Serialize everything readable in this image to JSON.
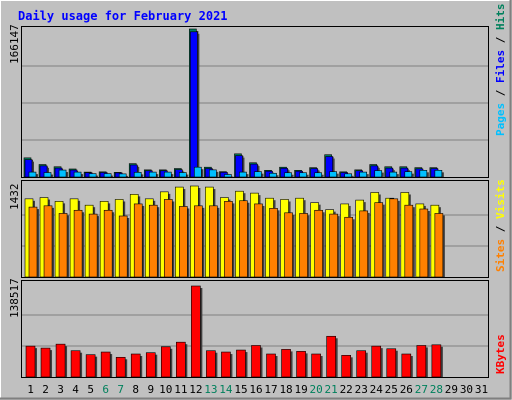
{
  "title": "Daily usage for February 2021",
  "legend": {
    "top_pages": "Pages",
    "top_files": "Files",
    "top_hits": "Hits",
    "mid_sites": "Sites",
    "mid_visits": "Visits",
    "bottom_kbytes": "KBytes",
    "separator": " / "
  },
  "colors": {
    "background": "#c0c0c0",
    "grid": "#808080",
    "title": "#0000ff",
    "hits": "#00805c",
    "files": "#0000ff",
    "pages": "#00c0ff",
    "visits": "#ffff00",
    "sites": "#ff8000",
    "kbytes": "#ff0000",
    "weekend_label": "#00805c",
    "weekday_label": "#000000"
  },
  "chart_data": [
    {
      "type": "bar",
      "panel": "hits-files-pages",
      "categories": [
        "1",
        "2",
        "3",
        "4",
        "5",
        "6",
        "7",
        "8",
        "9",
        "10",
        "11",
        "12",
        "13",
        "14",
        "15",
        "16",
        "17",
        "18",
        "19",
        "20",
        "21",
        "22",
        "23",
        "24",
        "25",
        "26",
        "27",
        "28",
        "29",
        "30",
        "31"
      ],
      "max_label": "166147",
      "ylim": [
        0,
        166147
      ],
      "series": [
        {
          "name": "Hits",
          "values": [
            21500,
            14000,
            11500,
            9000,
            5500,
            5800,
            5200,
            15000,
            8000,
            8000,
            9500,
            166147,
            11000,
            6000,
            26000,
            16000,
            7500,
            11000,
            7500,
            10500,
            25000,
            5800,
            8000,
            14000,
            11500,
            11500,
            10500,
            10500,
            null,
            null,
            null
          ]
        },
        {
          "name": "Files",
          "values": [
            19500,
            12500,
            10000,
            7800,
            4800,
            5000,
            4600,
            13500,
            7000,
            7000,
            8200,
            163000,
            9500,
            5200,
            24000,
            14500,
            6500,
            9800,
            6500,
            9500,
            23000,
            5000,
            7000,
            12500,
            10000,
            10000,
            9200,
            9500,
            null,
            null,
            null
          ]
        },
        {
          "name": "Pages",
          "values": [
            5500,
            5000,
            7800,
            5500,
            3800,
            3800,
            3500,
            5200,
            5500,
            5500,
            5000,
            11000,
            8000,
            2800,
            5500,
            6000,
            4200,
            4800,
            4800,
            4800,
            6000,
            3600,
            5500,
            7200,
            5500,
            6000,
            7500,
            7500,
            null,
            null,
            null
          ]
        }
      ]
    },
    {
      "type": "bar",
      "panel": "visits-sites",
      "categories": [
        "1",
        "2",
        "3",
        "4",
        "5",
        "6",
        "7",
        "8",
        "9",
        "10",
        "11",
        "12",
        "13",
        "14",
        "15",
        "16",
        "17",
        "18",
        "19",
        "20",
        "21",
        "22",
        "23",
        "24",
        "25",
        "26",
        "27",
        "28",
        "29",
        "30",
        "31"
      ],
      "max_label": "1432",
      "ylim": [
        0,
        1432
      ],
      "series": [
        {
          "name": "Visits",
          "values": [
            1230,
            1250,
            1190,
            1230,
            1130,
            1190,
            1220,
            1300,
            1230,
            1340,
            1415,
            1432,
            1415,
            1250,
            1350,
            1320,
            1240,
            1220,
            1240,
            1170,
            1060,
            1150,
            1210,
            1330,
            1240,
            1330,
            1150,
            1130,
            null,
            null,
            null
          ]
        },
        {
          "name": "Sites",
          "values": [
            1100,
            1120,
            1000,
            1050,
            990,
            1050,
            960,
            1150,
            1130,
            1220,
            1110,
            1120,
            1120,
            1190,
            1200,
            1150,
            1080,
            1010,
            1000,
            1050,
            990,
            940,
            1040,
            1170,
            1230,
            1130,
            1070,
            1000,
            null,
            null,
            null
          ]
        }
      ]
    },
    {
      "type": "bar",
      "panel": "kbytes",
      "categories": [
        "1",
        "2",
        "3",
        "4",
        "5",
        "6",
        "7",
        "8",
        "9",
        "10",
        "11",
        "12",
        "13",
        "14",
        "15",
        "16",
        "17",
        "18",
        "19",
        "20",
        "21",
        "22",
        "23",
        "24",
        "25",
        "26",
        "27",
        "28",
        "29",
        "30",
        "31"
      ],
      "max_label": "138517",
      "ylim": [
        0,
        138517
      ],
      "series": [
        {
          "name": "KBytes",
          "values": [
            47000,
            44000,
            50000,
            40000,
            34000,
            38000,
            30000,
            35000,
            37000,
            46000,
            53000,
            138517,
            40000,
            38000,
            41000,
            48000,
            35000,
            42000,
            39000,
            35000,
            62000,
            33000,
            40000,
            47000,
            43000,
            35000,
            48000,
            49000,
            null,
            null,
            null
          ]
        }
      ]
    }
  ]
}
